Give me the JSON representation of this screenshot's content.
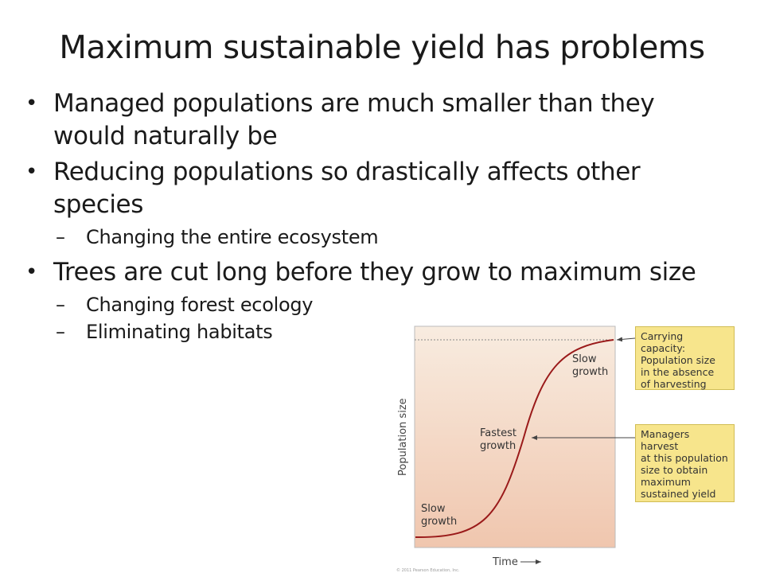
{
  "slide": {
    "title": "Maximum sustainable yield has problems",
    "bullets": [
      {
        "lines": [
          "Managed populations are much smaller than they",
          "would naturally be"
        ]
      },
      {
        "lines": [
          "Reducing populations so drastically affects other",
          "species"
        ]
      },
      {
        "sub": "Changing the entire ecosystem"
      },
      {
        "lines": [
          "Trees are cut long before they grow to maximum size"
        ]
      },
      {
        "sub": "Changing forest ecology"
      },
      {
        "sub": "Eliminating habitats"
      }
    ],
    "dash": "–"
  },
  "figure": {
    "y_axis_label": "Population size",
    "x_axis_label": "Time",
    "curve_labels": {
      "slow_top": [
        "Slow",
        "growth"
      ],
      "fastest": [
        "Fastest",
        "growth"
      ],
      "slow_bottom": [
        "Slow",
        "growth"
      ]
    },
    "callouts": {
      "carrying_capacity": [
        "Carrying capacity:",
        "Population size",
        "in the absence",
        "of harvesting"
      ],
      "managers": [
        "Managers harvest",
        "at this population",
        "size to obtain",
        "maximum",
        "sustained yield"
      ]
    },
    "credit": "© 2011 Pearson Education, Inc.",
    "colors": {
      "plot_top": "#f8ece0",
      "plot_bottom": "#f0c6ae",
      "curve": "#9a1a1a",
      "callout_bg": "#f7e58c"
    }
  }
}
